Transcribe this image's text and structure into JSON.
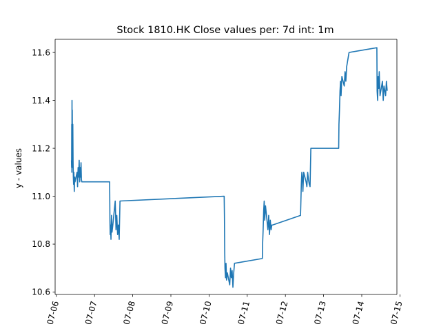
{
  "chart_data": {
    "type": "line",
    "title": "Stock 1810.HK Close values per: 7d int: 1m",
    "xlabel": "",
    "ylabel": "y - values",
    "xlim": [
      "07-05 23:13",
      "07-14 22:06"
    ],
    "ylim": [
      10.59,
      11.655
    ],
    "grid": false,
    "line_color": "#1f77b4",
    "x_ticks": [
      "07-06",
      "07-07",
      "07-08",
      "07-09",
      "07-10",
      "07-11",
      "07-12",
      "07-13",
      "07-14",
      "07-15"
    ],
    "y_ticks": [
      "10.6",
      "10.8",
      "11.0",
      "11.2",
      "11.4",
      "11.6"
    ],
    "series": [
      {
        "x": [
          "07-06 09:30",
          "07-06 09:35",
          "07-06 09:40",
          "07-06 09:45",
          "07-06 09:50",
          "07-06 09:55",
          "07-06 10:00",
          "07-06 10:10",
          "07-06 10:20",
          "07-06 10:30",
          "07-06 10:40",
          "07-06 10:50",
          "07-06 11:00",
          "07-06 11:15",
          "07-06 11:30",
          "07-06 11:45",
          "07-06 13:00",
          "07-06 13:20",
          "07-06 13:40",
          "07-06 14:00",
          "07-06 14:20",
          "07-06 14:40",
          "07-06 15:00",
          "07-06 15:15",
          "07-06 15:30",
          "07-06 15:45",
          "07-06 16:00",
          "07-07 09:30",
          "07-07 09:40",
          "07-07 09:50",
          "07-07 10:00",
          "07-07 10:20",
          "07-07 10:40",
          "07-07 11:00",
          "07-07 11:30",
          "07-07 13:00",
          "07-07 13:30",
          "07-07 14:00",
          "07-07 14:30",
          "07-07 15:00",
          "07-07 15:30",
          "07-07 16:00",
          "07-10 09:30",
          "07-10 09:40",
          "07-10 09:50",
          "07-10 10:00",
          "07-10 10:20",
          "07-10 10:40",
          "07-10 11:00",
          "07-10 11:30",
          "07-10 13:00",
          "07-10 13:30",
          "07-10 14:00",
          "07-10 14:30",
          "07-10 15:00",
          "07-10 15:30",
          "07-10 16:00",
          "07-11 09:30",
          "07-11 09:40",
          "07-11 10:00",
          "07-11 10:20",
          "07-11 10:40",
          "07-11 11:00",
          "07-11 11:30",
          "07-11 13:00",
          "07-11 13:30",
          "07-11 14:00",
          "07-11 14:30",
          "07-11 15:00",
          "07-11 15:30",
          "07-11 16:00",
          "07-12 09:30",
          "07-12 09:40",
          "07-12 10:00",
          "07-12 10:20",
          "07-12 10:40",
          "07-12 11:00",
          "07-12 11:30",
          "07-12 13:00",
          "07-12 13:30",
          "07-12 14:00",
          "07-12 14:30",
          "07-12 15:00",
          "07-12 15:30",
          "07-12 16:00",
          "07-13 09:30",
          "07-13 09:40",
          "07-13 10:00",
          "07-13 10:20",
          "07-13 10:40",
          "07-13 11:00",
          "07-13 11:30",
          "07-13 13:00",
          "07-13 13:30",
          "07-13 14:00",
          "07-13 14:30",
          "07-13 15:00",
          "07-13 15:30",
          "07-13 16:00",
          "07-14 09:30",
          "07-14 09:40",
          "07-14 10:00",
          "07-14 10:20",
          "07-14 10:40",
          "07-14 11:00",
          "07-14 11:30",
          "07-14 13:00",
          "07-14 13:30",
          "07-14 14:00",
          "07-14 14:30",
          "07-14 15:00",
          "07-14 15:30",
          "07-14 16:00"
        ],
        "values": [
          11.15,
          11.12,
          11.3,
          11.1,
          11.4,
          11.2,
          11.36,
          11.12,
          11.3,
          11.15,
          11.08,
          11.05,
          11.1,
          11.02,
          11.08,
          11.06,
          11.1,
          11.04,
          11.12,
          11.08,
          11.15,
          11.06,
          11.12,
          11.08,
          11.14,
          11.07,
          11.06,
          11.06,
          10.9,
          10.84,
          10.88,
          10.82,
          10.92,
          10.85,
          10.88,
          10.98,
          10.86,
          10.92,
          10.84,
          10.88,
          10.82,
          10.98,
          11.0,
          10.92,
          10.78,
          10.7,
          10.66,
          10.72,
          10.65,
          10.68,
          10.63,
          10.7,
          10.66,
          10.69,
          10.62,
          10.68,
          10.72,
          10.74,
          10.8,
          10.86,
          10.94,
          10.98,
          10.9,
          10.96,
          10.86,
          10.92,
          10.84,
          10.9,
          10.86,
          10.88,
          10.88,
          10.92,
          10.96,
          11.05,
          11.1,
          11.08,
          11.02,
          11.1,
          11.06,
          11.04,
          11.1,
          11.07,
          11.05,
          11.04,
          11.2,
          11.2,
          11.3,
          11.36,
          11.44,
          11.48,
          11.42,
          11.5,
          11.46,
          11.52,
          11.48,
          11.54,
          11.56,
          11.58,
          11.6,
          11.62,
          11.44,
          11.4,
          11.5,
          11.45,
          11.52,
          11.42,
          11.48,
          11.4,
          11.46,
          11.44,
          11.42,
          11.48,
          11.44
        ]
      }
    ]
  }
}
